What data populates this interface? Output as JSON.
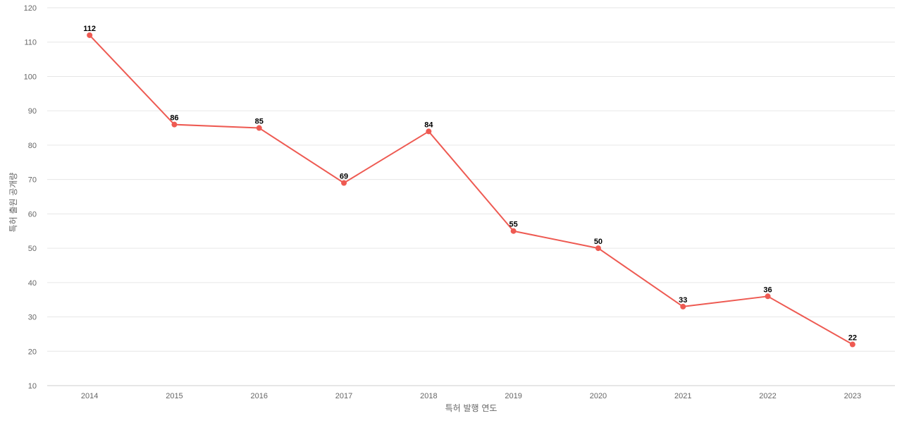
{
  "chart_data": {
    "type": "line",
    "title": "",
    "xlabel": "특허 발행 연도",
    "ylabel": "특허 출원 공개량",
    "categories": [
      "2014",
      "2015",
      "2016",
      "2017",
      "2018",
      "2019",
      "2020",
      "2021",
      "2022",
      "2023"
    ],
    "series": [
      {
        "values": [
          112,
          86,
          85,
          69,
          84,
          55,
          50,
          33,
          36,
          22
        ],
        "color": "#ee5a52"
      }
    ],
    "ylim": [
      10,
      120
    ],
    "yticks": [
      10,
      20,
      30,
      40,
      50,
      60,
      70,
      80,
      90,
      100,
      110,
      120
    ],
    "grid": true,
    "legend": "none",
    "data_labels": true
  }
}
